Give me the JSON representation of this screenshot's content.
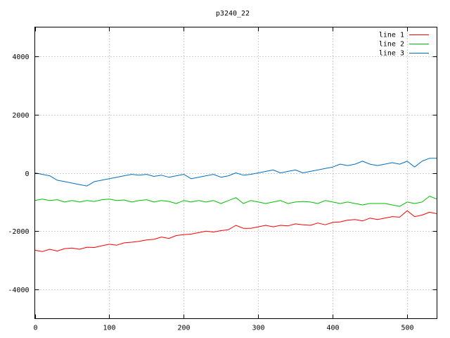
{
  "chart_data": {
    "type": "line",
    "title": "p3240_22",
    "xlim": [
      0,
      540
    ],
    "ylim": [
      -5000,
      5000
    ],
    "xticks": [
      0,
      100,
      200,
      300,
      400,
      500
    ],
    "yticks": [
      -4000,
      -2000,
      0,
      2000,
      4000
    ],
    "grid": true,
    "legend_position": "top-right",
    "series": [
      {
        "name": "line 1",
        "color": "#ff0000",
        "x": [
          0,
          10,
          20,
          30,
          40,
          50,
          60,
          70,
          80,
          90,
          100,
          110,
          120,
          130,
          140,
          150,
          160,
          170,
          180,
          190,
          200,
          210,
          220,
          230,
          240,
          250,
          260,
          270,
          280,
          290,
          300,
          310,
          320,
          330,
          340,
          350,
          360,
          370,
          380,
          390,
          400,
          410,
          420,
          430,
          440,
          450,
          460,
          470,
          480,
          490,
          500,
          510,
          520,
          530,
          540
        ],
        "y": [
          -2650,
          -2700,
          -2620,
          -2680,
          -2600,
          -2580,
          -2620,
          -2550,
          -2560,
          -2500,
          -2450,
          -2480,
          -2400,
          -2380,
          -2350,
          -2300,
          -2280,
          -2200,
          -2250,
          -2150,
          -2120,
          -2100,
          -2050,
          -2000,
          -2030,
          -1980,
          -1950,
          -1800,
          -1900,
          -1900,
          -1850,
          -1800,
          -1850,
          -1800,
          -1820,
          -1750,
          -1780,
          -1800,
          -1720,
          -1780,
          -1700,
          -1680,
          -1620,
          -1600,
          -1650,
          -1550,
          -1600,
          -1550,
          -1500,
          -1520,
          -1300,
          -1500,
          -1450,
          -1350,
          -1400
        ]
      },
      {
        "name": "line 2",
        "color": "#00c000",
        "x": [
          0,
          10,
          20,
          30,
          40,
          50,
          60,
          70,
          80,
          90,
          100,
          110,
          120,
          130,
          140,
          150,
          160,
          170,
          180,
          190,
          200,
          210,
          220,
          230,
          240,
          250,
          260,
          270,
          280,
          290,
          300,
          310,
          320,
          330,
          340,
          350,
          360,
          370,
          380,
          390,
          400,
          410,
          420,
          430,
          440,
          450,
          460,
          470,
          480,
          490,
          500,
          510,
          520,
          530,
          540
        ],
        "y": [
          -950,
          -900,
          -950,
          -920,
          -1000,
          -950,
          -1000,
          -950,
          -980,
          -920,
          -900,
          -950,
          -930,
          -1000,
          -950,
          -920,
          -1000,
          -950,
          -980,
          -1050,
          -950,
          -1000,
          -950,
          -1000,
          -950,
          -1050,
          -950,
          -850,
          -1050,
          -950,
          -1000,
          -1050,
          -1000,
          -950,
          -1050,
          -1000,
          -980,
          -1000,
          -1050,
          -950,
          -1000,
          -1050,
          -1000,
          -1050,
          -1100,
          -1050,
          -1050,
          -1050,
          -1100,
          -1150,
          -1000,
          -1050,
          -1000,
          -800,
          -900
        ]
      },
      {
        "name": "line 3",
        "color": "#0070c0",
        "x": [
          0,
          10,
          20,
          30,
          40,
          50,
          60,
          70,
          80,
          90,
          100,
          110,
          120,
          130,
          140,
          150,
          160,
          170,
          180,
          190,
          200,
          210,
          220,
          230,
          240,
          250,
          260,
          270,
          280,
          290,
          300,
          310,
          320,
          330,
          340,
          350,
          360,
          370,
          380,
          390,
          400,
          410,
          420,
          430,
          440,
          450,
          460,
          470,
          480,
          490,
          500,
          510,
          520,
          530,
          540
        ],
        "y": [
          0,
          -50,
          -100,
          -250,
          -300,
          -350,
          -400,
          -450,
          -300,
          -250,
          -200,
          -150,
          -100,
          -50,
          -80,
          -50,
          -120,
          -80,
          -150,
          -100,
          -50,
          -200,
          -150,
          -100,
          -50,
          -150,
          -100,
          0,
          -80,
          -50,
          0,
          50,
          100,
          0,
          50,
          100,
          0,
          50,
          100,
          150,
          200,
          300,
          250,
          300,
          400,
          300,
          250,
          300,
          350,
          300,
          400,
          200,
          400,
          500,
          500
        ]
      }
    ]
  }
}
